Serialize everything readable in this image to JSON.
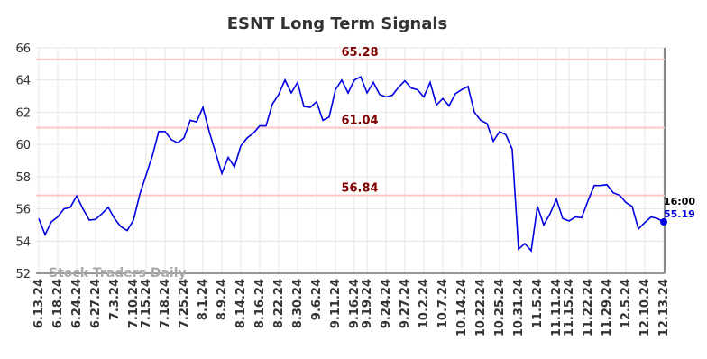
{
  "chart_data": {
    "type": "line",
    "title": "ESNT Long Term Signals",
    "watermark": "Stock Traders Daily",
    "last_time_label": "16:00",
    "categories": [
      "6.13.24",
      null,
      null,
      "6.18.24",
      null,
      null,
      "6.24.24",
      null,
      null,
      "6.27.24",
      null,
      null,
      "7.3.24",
      null,
      null,
      "7.10.24",
      null,
      "7.15.24",
      null,
      null,
      "7.18.24",
      null,
      null,
      "7.25.24",
      null,
      null,
      "8.1.24",
      null,
      null,
      "8.9.24",
      null,
      null,
      "8.14.24",
      null,
      null,
      "8.16.24",
      null,
      null,
      "8.22.24",
      null,
      null,
      "8.30.24",
      null,
      null,
      "9.6.24",
      null,
      null,
      "9.11.24",
      null,
      null,
      "9.16.24",
      null,
      "9.19.24",
      null,
      null,
      "9.24.24",
      null,
      null,
      "9.27.24",
      null,
      null,
      "10.2.24",
      null,
      null,
      "10.7.24",
      null,
      null,
      "10.14.24",
      null,
      null,
      "10.22.24",
      null,
      null,
      "10.25.24",
      null,
      null,
      "10.31.24",
      null,
      null,
      "11.5.24",
      null,
      null,
      "11.11.24",
      null,
      "11.15.24",
      null,
      null,
      "11.22.24",
      null,
      null,
      "11.29.24",
      null,
      null,
      "12.5.24",
      null,
      null,
      "12.10.24",
      null,
      null,
      "12.13.24"
    ],
    "series": [
      {
        "color": "#0000e0",
        "values": [
          55.4,
          54.4,
          55.2,
          55.5,
          56.0,
          56.1,
          56.8,
          56.0,
          55.3,
          55.35,
          55.7,
          56.1,
          55.4,
          54.9,
          54.65,
          55.3,
          56.9,
          58.1,
          59.3,
          60.8,
          60.8,
          60.3,
          60.1,
          60.4,
          61.5,
          61.4,
          62.3,
          60.8,
          59.5,
          58.2,
          59.2,
          58.6,
          59.9,
          60.4,
          60.7,
          61.15,
          61.15,
          62.5,
          63.1,
          64.0,
          63.2,
          63.85,
          62.35,
          62.3,
          62.65,
          61.5,
          61.7,
          63.4,
          64.0,
          63.2,
          64.0,
          64.2,
          63.2,
          63.85,
          63.1,
          62.95,
          63.05,
          63.55,
          63.95,
          63.5,
          63.4,
          62.95,
          63.85,
          62.45,
          62.85,
          62.4,
          63.15,
          63.4,
          63.6,
          62.0,
          61.5,
          61.3,
          60.2,
          60.8,
          60.6,
          59.7,
          53.5,
          53.85,
          53.4,
          56.15,
          55.0,
          55.7,
          56.6,
          55.4,
          55.25,
          55.5,
          55.45,
          56.5,
          57.45,
          57.45,
          57.5,
          57.0,
          56.85,
          56.4,
          56.15,
          54.75,
          55.15,
          55.5,
          55.4,
          55.19
        ]
      }
    ],
    "hlines": [
      {
        "value": 65.28,
        "color": "#ffc8c8",
        "label_color": "#800000"
      },
      {
        "value": 61.04,
        "color": "#ffc8c8",
        "label_color": "#800000"
      },
      {
        "value": 56.84,
        "color": "#ffc8c8",
        "label_color": "#800000"
      }
    ],
    "ylim": [
      52,
      66
    ],
    "yticks": [
      52,
      54,
      56,
      58,
      60,
      62,
      64,
      66
    ],
    "grid": true
  }
}
